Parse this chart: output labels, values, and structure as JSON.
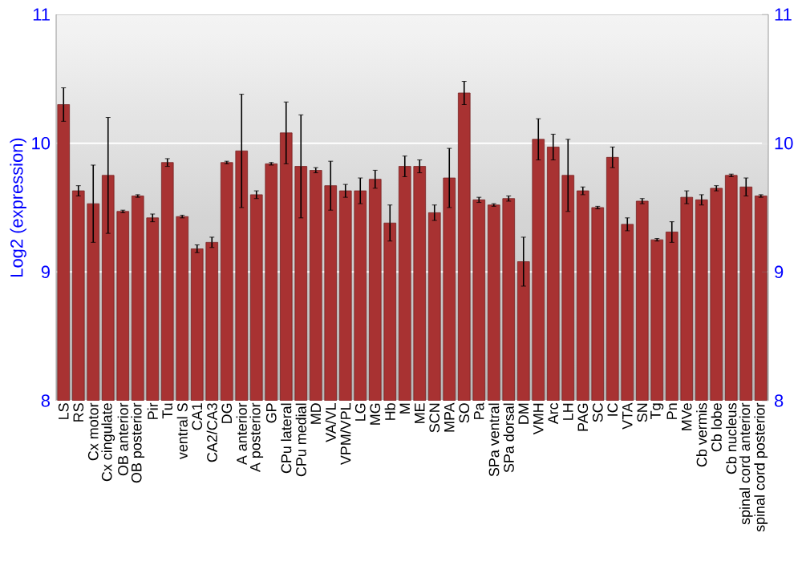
{
  "chart_data": {
    "type": "bar",
    "ylabel": "Log2 (expression)",
    "categories": [
      "LS",
      "RS",
      "Cx motor",
      "Cx cingulate",
      "OB anterior",
      "OB posterior",
      "Pir",
      "Tu",
      "ventral S",
      "CA1",
      "CA2/CA3",
      "DG",
      "A anterior",
      "A posterior",
      "GP",
      "CPu lateral",
      "CPu medial",
      "MD",
      "VA/VL",
      "VPM/VPL",
      "LG",
      "MG",
      "Hb",
      "M",
      "ME",
      "SCN",
      "MPA",
      "SO",
      "Pa",
      "SPa ventral",
      "SPa dorsal",
      "DM",
      "VMH",
      "Arc",
      "LH",
      "PAG",
      "SC",
      "IC",
      "VTA",
      "SN",
      "Tg",
      "Pn",
      "MVe",
      "Cb vermis",
      "Cb lobe",
      "Cb nucleus",
      "spinal cord anterior",
      "spinal cord posterior"
    ],
    "values": [
      10.3,
      9.63,
      9.53,
      9.75,
      9.47,
      9.59,
      9.42,
      9.85,
      9.43,
      9.18,
      9.23,
      9.85,
      9.94,
      9.6,
      9.84,
      10.08,
      9.82,
      9.79,
      9.67,
      9.63,
      9.63,
      9.72,
      9.38,
      9.82,
      9.82,
      9.46,
      9.73,
      10.39,
      9.56,
      9.52,
      9.57,
      9.08,
      10.03,
      9.97,
      9.75,
      9.63,
      9.5,
      9.89,
      9.37,
      9.55,
      9.25,
      9.31,
      9.58,
      9.56,
      9.65,
      9.75,
      9.66,
      9.59
    ],
    "errors": [
      0.13,
      0.04,
      0.3,
      0.45,
      0.01,
      0.01,
      0.03,
      0.03,
      0.01,
      0.03,
      0.04,
      0.01,
      0.44,
      0.03,
      0.01,
      0.24,
      0.4,
      0.02,
      0.19,
      0.05,
      0.1,
      0.07,
      0.14,
      0.08,
      0.05,
      0.06,
      0.23,
      0.09,
      0.02,
      0.01,
      0.02,
      0.19,
      0.16,
      0.1,
      0.28,
      0.03,
      0.01,
      0.08,
      0.05,
      0.02,
      0.01,
      0.08,
      0.05,
      0.04,
      0.02,
      0.01,
      0.07,
      0.01
    ],
    "color": "#a83232",
    "ylim": [
      8,
      11
    ],
    "yticks": [
      8,
      9,
      10,
      11
    ],
    "y2lim": [
      8,
      11
    ],
    "y2ticks": [
      8,
      9,
      10,
      11
    ],
    "grid": "y"
  }
}
